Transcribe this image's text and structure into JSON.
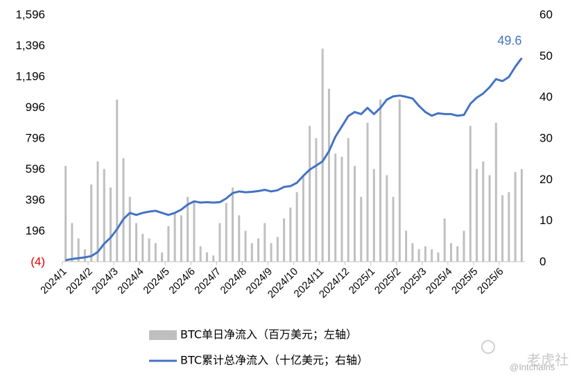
{
  "chart_data": {
    "type": "bar_line",
    "categories": [
      "2024/1",
      null,
      null,
      null,
      "2024/2",
      null,
      null,
      null,
      "2024/3",
      null,
      null,
      null,
      "2024/4",
      null,
      null,
      null,
      "2024/5",
      null,
      null,
      null,
      "2024/6",
      null,
      null,
      null,
      "2024/7",
      null,
      null,
      null,
      "2024/8",
      null,
      null,
      null,
      "2024/9",
      null,
      null,
      null,
      "2024/10",
      null,
      null,
      null,
      "2024/11",
      null,
      null,
      null,
      "2024/12",
      null,
      null,
      null,
      "2025/1",
      null,
      null,
      null,
      "2025/2",
      null,
      null,
      null,
      "2025/3",
      null,
      null,
      null,
      "2025/4",
      null,
      null,
      null,
      "2025/5",
      null,
      null,
      null,
      "2025/6",
      null,
      null,
      null
    ],
    "series": [
      {
        "name": "BTC单日净流入（百万美元；左轴）",
        "color": "#bfbfbf",
        "kind": "bar",
        "axis": "y",
        "values": [
          620,
          250,
          150,
          80,
          500,
          650,
          600,
          480,
          1050,
          670,
          420,
          250,
          180,
          150,
          120,
          60,
          230,
          320,
          300,
          420,
          390,
          100,
          60,
          40,
          250,
          380,
          480,
          300,
          200,
          120,
          150,
          250,
          120,
          160,
          280,
          350,
          450,
          560,
          880,
          800,
          1380,
          1120,
          700,
          680,
          800,
          620,
          420,
          900,
          600,
          1050,
          560,
          420,
          1050,
          200,
          120,
          80,
          100,
          80,
          60,
          280,
          120,
          100,
          200,
          880,
          600,
          650,
          560,
          900,
          430,
          450,
          580,
          600
        ]
      },
      {
        "name": "BTC累计总净流入（十亿美元；右轴）",
        "color": "#4472c4",
        "kind": "line",
        "axis": "y2",
        "values": [
          0.5,
          0.8,
          1.0,
          1.2,
          1.5,
          2.5,
          4.5,
          6.0,
          8.0,
          10.5,
          12.0,
          11.5,
          12.0,
          12.3,
          12.5,
          12.0,
          11.5,
          12.0,
          12.8,
          14.0,
          14.8,
          14.5,
          14.6,
          14.5,
          14.6,
          15.5,
          16.8,
          17.2,
          17.0,
          17.1,
          17.3,
          17.6,
          17.2,
          17.5,
          18.3,
          18.5,
          19.3,
          21.0,
          22.5,
          23.5,
          24.5,
          27.0,
          30.5,
          33.0,
          35.5,
          36.5,
          36.0,
          37.5,
          36.0,
          37.5,
          39.5,
          40.3,
          40.5,
          40.2,
          39.8,
          38.0,
          36.5,
          35.6,
          36.2,
          36.0,
          36.0,
          35.6,
          35.8,
          38.5,
          40.0,
          41.0,
          42.5,
          44.5,
          44.0,
          45.0,
          47.5,
          49.6
        ]
      }
    ],
    "ylim": [
      -4,
      1596
    ],
    "yticks": [
      {
        "value": -4,
        "label": "(4)"
      },
      196,
      396,
      596,
      796,
      996,
      {
        "value": 1196,
        "label": "1,196"
      },
      {
        "value": 1396,
        "label": "1,396"
      },
      {
        "value": 1596,
        "label": "1,596"
      }
    ],
    "y2lim": [
      0,
      60
    ],
    "y2ticks": [
      0,
      10,
      20,
      30,
      40,
      50,
      60
    ],
    "grid": false,
    "watermark": "老虎社区",
    "credit": "@Intchains"
  }
}
